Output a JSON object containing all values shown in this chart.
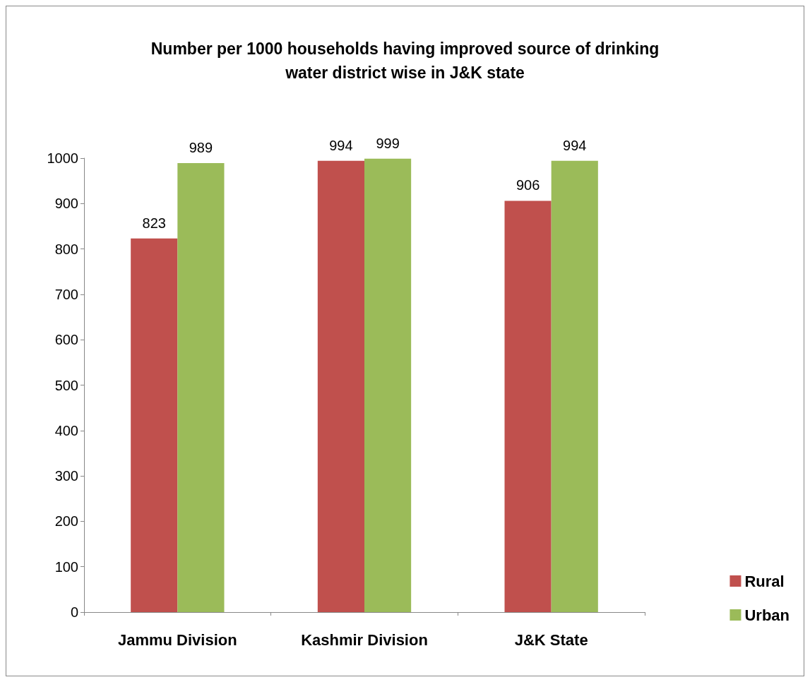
{
  "chart_data": {
    "type": "bar",
    "title": "Number per 1000 households having improved source of drinking\nwater district wise in J&K state",
    "categories": [
      "Jammu Division",
      "Kashmir Division",
      "J&K State"
    ],
    "series": [
      {
        "name": "Rural",
        "color": "#c0504d",
        "values": [
          823,
          994,
          906
        ]
      },
      {
        "name": "Urban",
        "color": "#9bbb59",
        "values": [
          989,
          999,
          994
        ]
      }
    ],
    "ylim": [
      0,
      1000
    ],
    "yticks": [
      0,
      100,
      200,
      300,
      400,
      500,
      600,
      700,
      800,
      900,
      1000
    ],
    "grid": false,
    "legend": "bottom right",
    "data_labels": true
  }
}
